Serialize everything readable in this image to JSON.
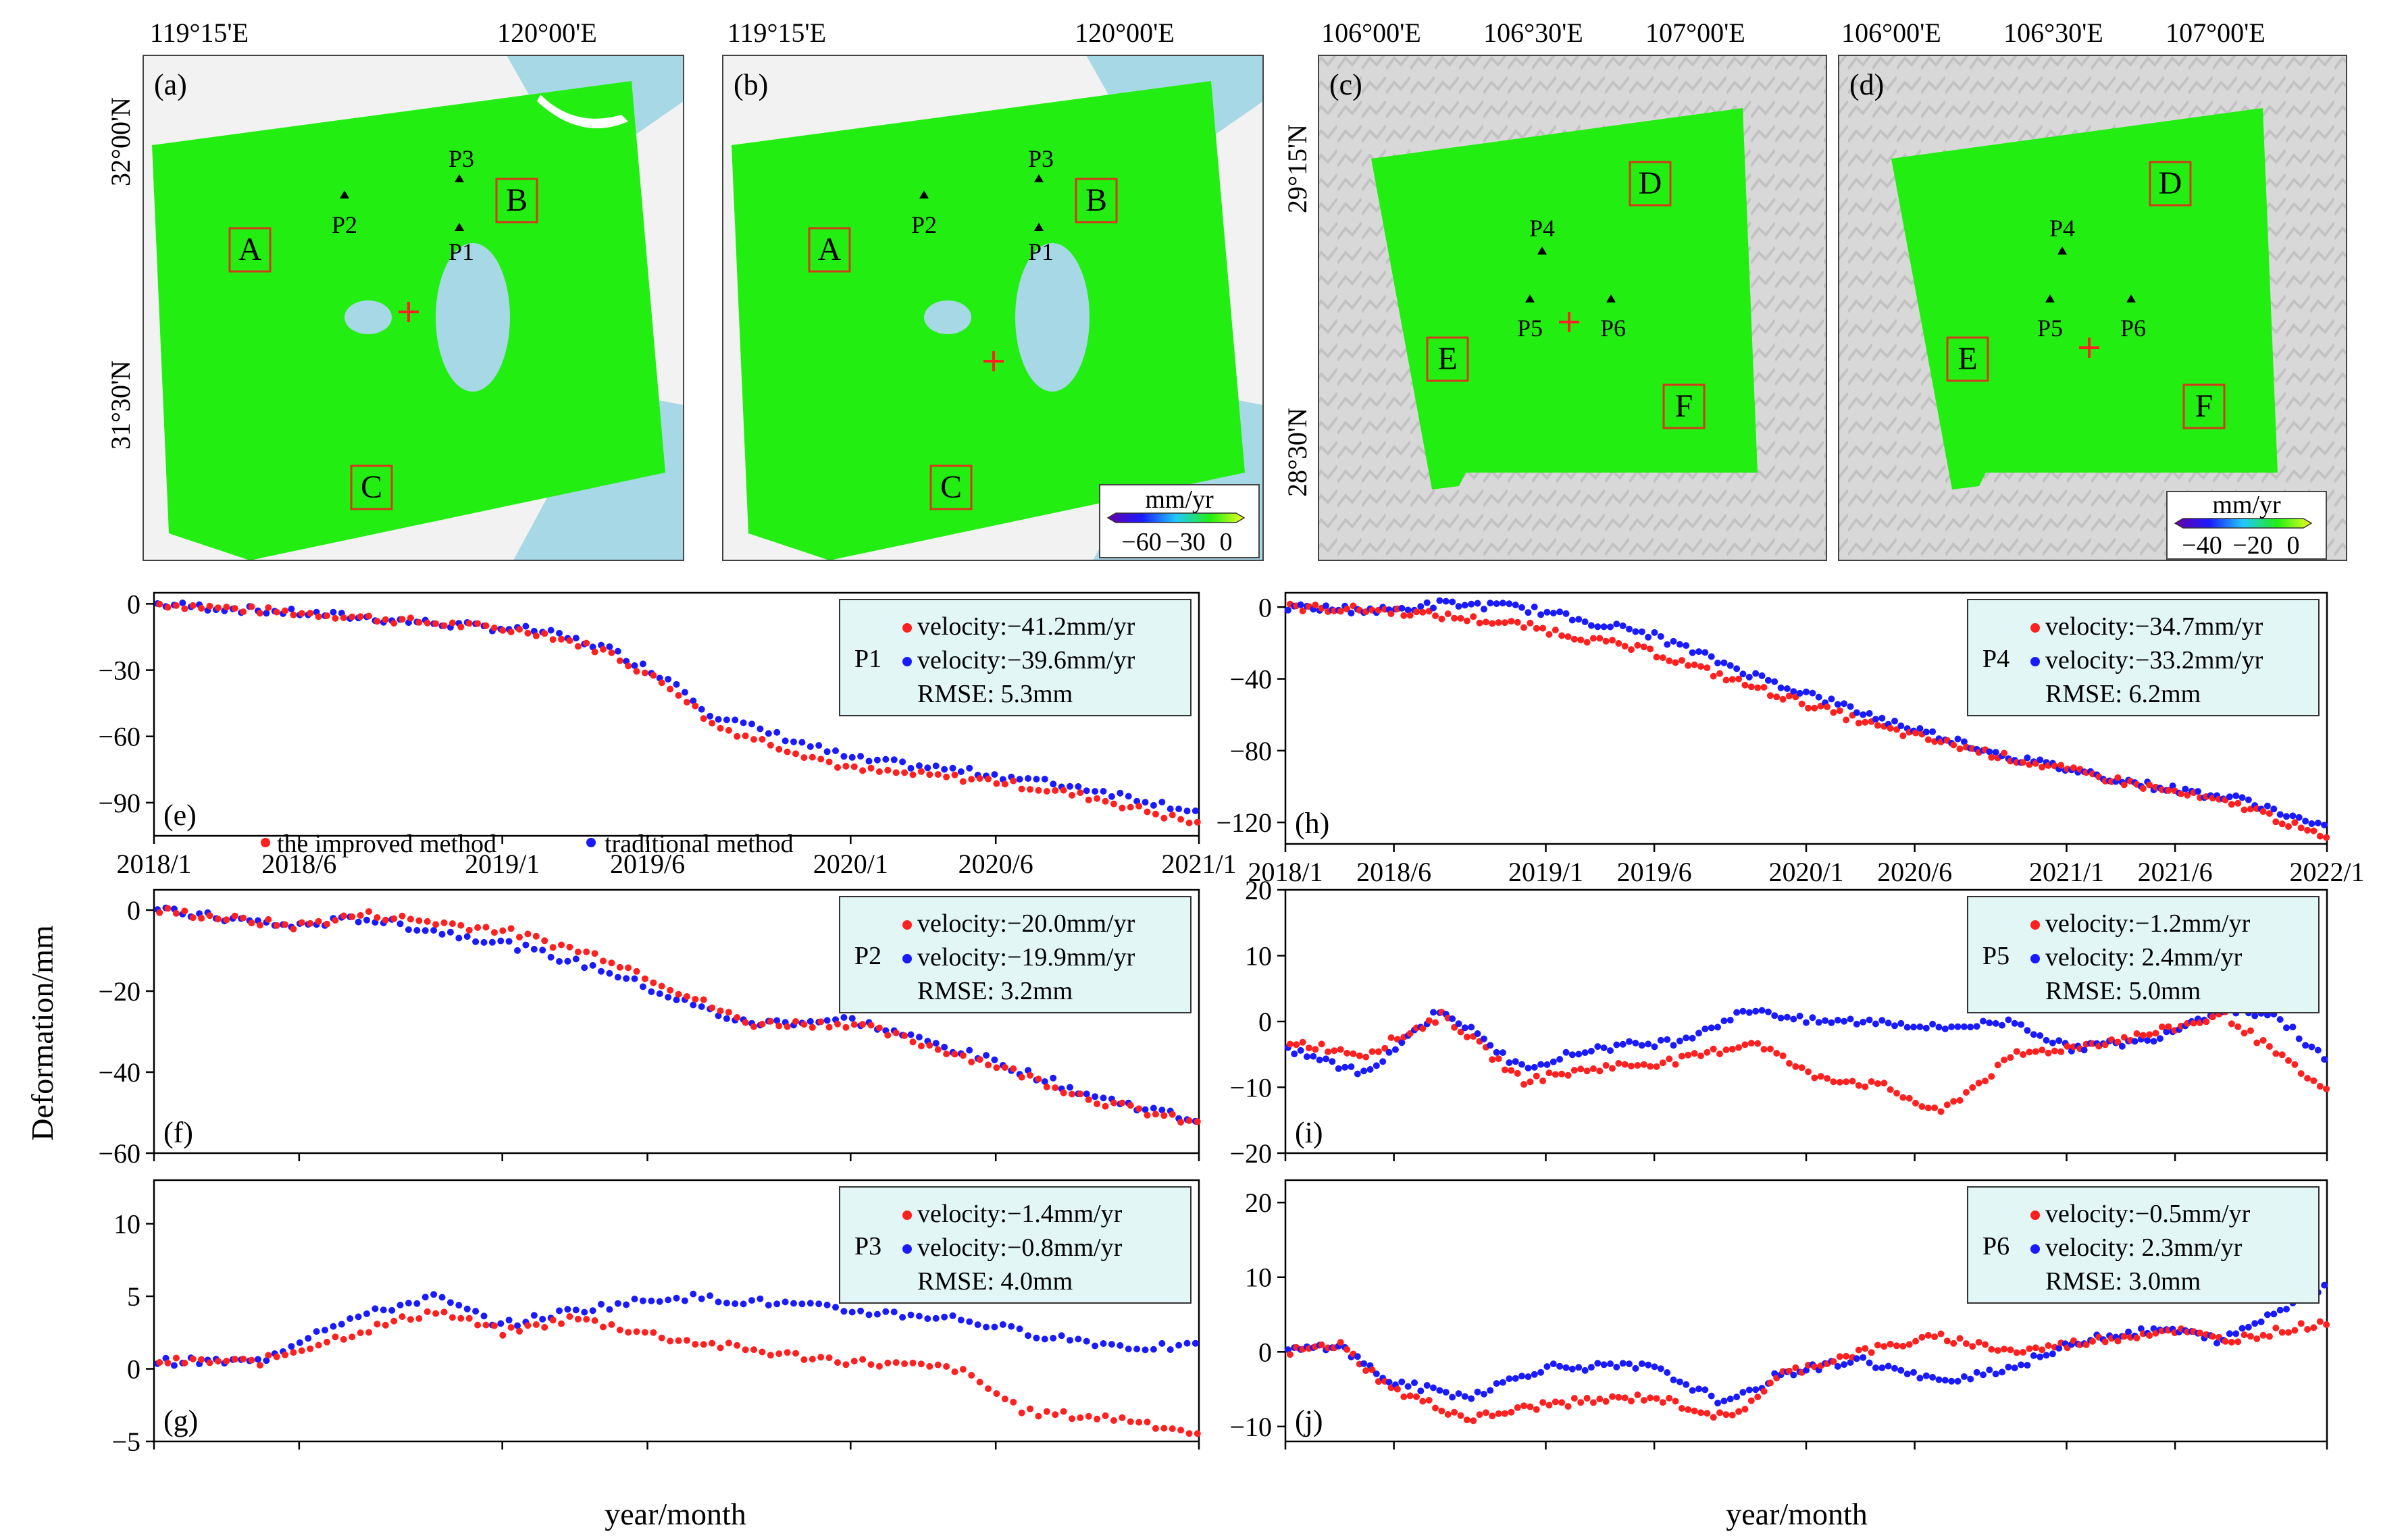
{
  "maps": [
    {
      "label": "(a)",
      "lon_ticks": [
        "119°15'E",
        "120°00'E"
      ],
      "lat_ticks": [
        "32°00'N",
        "31°30'N"
      ],
      "points": [
        "P1",
        "P2",
        "P3"
      ],
      "boxes": [
        "A",
        "B",
        "C"
      ],
      "colorbar": null
    },
    {
      "label": "(b)",
      "lon_ticks": [
        "119°15'E",
        "120°00'E"
      ],
      "lat_ticks": [],
      "points": [
        "P1",
        "P2",
        "P3"
      ],
      "boxes": [
        "A",
        "B",
        "C"
      ],
      "colorbar": {
        "unit": "mm/yr",
        "ticks": [
          "−60",
          "−30",
          "0"
        ]
      }
    },
    {
      "label": "(c)",
      "lon_ticks": [
        "106°00'E",
        "106°30'E",
        "107°00'E"
      ],
      "lat_ticks": [
        "29°15'N",
        "28°30'N"
      ],
      "points": [
        "P4",
        "P5",
        "P6"
      ],
      "boxes": [
        "D",
        "E",
        "F"
      ],
      "colorbar": null
    },
    {
      "label": "(d)",
      "lon_ticks": [
        "106°00'E",
        "106°30'E",
        "107°00'E"
      ],
      "lat_ticks": [],
      "points": [
        "P4",
        "P5",
        "P6"
      ],
      "boxes": [
        "D",
        "E",
        "F"
      ],
      "colorbar": {
        "unit": "mm/yr",
        "ticks": [
          "−40",
          "−20",
          "0"
        ]
      }
    }
  ],
  "colors": {
    "improved": "#ff2020",
    "traditional": "#1a1aff",
    "raster": "#22ee11",
    "water": "#a6d8e6",
    "box_bg": "#e3f6f6",
    "cross": "#ff2020",
    "box": "#d23a1a"
  },
  "axis_labels": {
    "y": "Deformation/mm",
    "x": "year/month"
  },
  "legend": {
    "improved": "the improved method",
    "traditional": "traditional method"
  },
  "chart_data": [
    {
      "type": "scatter",
      "panel": "(e)",
      "point": "P1",
      "ylim": [
        -105,
        5
      ],
      "yticks": [
        "0",
        "−30",
        "−60",
        "−90"
      ],
      "xlim": [
        2018.0,
        2021.0
      ],
      "xticks": [
        "2018/1",
        "2018/6",
        "2019/1",
        "2019/6",
        "2020/1",
        "2020/6",
        "2021/1"
      ],
      "velocity_improved": "velocity:−41.2mm/yr",
      "velocity_traditional": "velocity:−39.6mm/yr",
      "rmse": "RMSE: 5.3mm",
      "anchors_improved": [
        [
          2018.0,
          0
        ],
        [
          2018.5,
          -5
        ],
        [
          2018.9,
          -10
        ],
        [
          2019.1,
          -13
        ],
        [
          2019.3,
          -22
        ],
        [
          2019.5,
          -40
        ],
        [
          2019.6,
          -55
        ],
        [
          2019.8,
          -65
        ],
        [
          2020.0,
          -75
        ],
        [
          2020.4,
          -80
        ],
        [
          2020.7,
          -88
        ],
        [
          2021.0,
          -100
        ]
      ],
      "anchors_traditional": [
        [
          2018.0,
          0
        ],
        [
          2018.5,
          -5
        ],
        [
          2018.9,
          -10
        ],
        [
          2019.1,
          -12
        ],
        [
          2019.3,
          -20
        ],
        [
          2019.5,
          -36
        ],
        [
          2019.6,
          -50
        ],
        [
          2019.8,
          -60
        ],
        [
          2020.0,
          -70
        ],
        [
          2020.4,
          -77
        ],
        [
          2020.7,
          -84
        ],
        [
          2021.0,
          -94
        ]
      ]
    },
    {
      "type": "scatter",
      "panel": "(f)",
      "point": "P2",
      "ylim": [
        -60,
        5
      ],
      "yticks": [
        "0",
        "−20",
        "−40",
        "−60"
      ],
      "xlim": [
        2018.0,
        2021.0
      ],
      "xticks": [],
      "velocity_improved": "velocity:−20.0mm/yr",
      "velocity_traditional": "velocity:−19.9mm/yr",
      "rmse": "RMSE: 3.2mm",
      "anchors_improved": [
        [
          2018.0,
          0
        ],
        [
          2018.4,
          -4
        ],
        [
          2018.6,
          -1
        ],
        [
          2019.0,
          -5
        ],
        [
          2019.3,
          -12
        ],
        [
          2019.5,
          -20
        ],
        [
          2019.7,
          -28
        ],
        [
          2020.0,
          -28
        ],
        [
          2020.4,
          -38
        ],
        [
          2020.7,
          -47
        ],
        [
          2021.0,
          -53
        ]
      ],
      "anchors_traditional": [
        [
          2018.0,
          0
        ],
        [
          2018.4,
          -4
        ],
        [
          2018.6,
          -2
        ],
        [
          2019.0,
          -8
        ],
        [
          2019.3,
          -15
        ],
        [
          2019.5,
          -22
        ],
        [
          2019.7,
          -28
        ],
        [
          2020.0,
          -27
        ],
        [
          2020.4,
          -37
        ],
        [
          2020.7,
          -46
        ],
        [
          2021.0,
          -52
        ]
      ]
    },
    {
      "type": "scatter",
      "panel": "(g)",
      "point": "P3",
      "ylim": [
        -5,
        13
      ],
      "yticks": [
        "10",
        "5",
        "0",
        "−5"
      ],
      "xlim": [
        2018.0,
        2021.0
      ],
      "xticks": [],
      "velocity_improved": "velocity:−1.4mm/yr",
      "velocity_traditional": "velocity:−0.8mm/yr",
      "rmse": "RMSE: 4.0mm",
      "anchors_improved": [
        [
          2018.0,
          0.5
        ],
        [
          2018.3,
          0.5
        ],
        [
          2018.5,
          2
        ],
        [
          2018.8,
          4
        ],
        [
          2019.0,
          2.5
        ],
        [
          2019.2,
          3.5
        ],
        [
          2019.5,
          2
        ],
        [
          2019.8,
          1
        ],
        [
          2020.0,
          0.5
        ],
        [
          2020.3,
          0
        ],
        [
          2020.5,
          -3
        ],
        [
          2020.8,
          -3.5
        ],
        [
          2021.0,
          -4.5
        ]
      ],
      "anchors_traditional": [
        [
          2018.0,
          0.5
        ],
        [
          2018.3,
          0.5
        ],
        [
          2018.5,
          3
        ],
        [
          2018.8,
          5
        ],
        [
          2019.0,
          3
        ],
        [
          2019.2,
          4
        ],
        [
          2019.5,
          5
        ],
        [
          2019.8,
          4.5
        ],
        [
          2020.0,
          4
        ],
        [
          2020.3,
          3.5
        ],
        [
          2020.5,
          2.5
        ],
        [
          2020.8,
          1.5
        ],
        [
          2021.0,
          1.5
        ]
      ]
    },
    {
      "type": "scatter",
      "panel": "(h)",
      "point": "P4",
      "ylim": [
        -132,
        8
      ],
      "yticks": [
        "0",
        "−40",
        "−80",
        "−120"
      ],
      "xlim": [
        2018.0,
        2022.0
      ],
      "xticks": [
        "2018/1",
        "2018/6",
        "2019/1",
        "2019/6",
        "2020/1",
        "2020/6",
        "2021/1",
        "2021/6",
        "2022/1"
      ],
      "velocity_improved": "velocity:−34.7mm/yr",
      "velocity_traditional": "velocity:−33.2mm/yr",
      "rmse": "RMSE: 6.2mm",
      "anchors_improved": [
        [
          2018.0,
          0
        ],
        [
          2018.4,
          -2
        ],
        [
          2018.6,
          -5
        ],
        [
          2018.9,
          -10
        ],
        [
          2019.4,
          -25
        ],
        [
          2019.8,
          -45
        ],
        [
          2020.3,
          -68
        ],
        [
          2020.8,
          -85
        ],
        [
          2021.3,
          -100
        ],
        [
          2021.7,
          -112
        ],
        [
          2022.0,
          -130
        ]
      ],
      "anchors_traditional": [
        [
          2018.0,
          0
        ],
        [
          2018.4,
          -2
        ],
        [
          2018.6,
          2
        ],
        [
          2018.9,
          0
        ],
        [
          2019.4,
          -15
        ],
        [
          2019.8,
          -38
        ],
        [
          2020.3,
          -63
        ],
        [
          2020.8,
          -84
        ],
        [
          2021.3,
          -99
        ],
        [
          2021.7,
          -108
        ],
        [
          2022.0,
          -124
        ]
      ]
    },
    {
      "type": "scatter",
      "panel": "(i)",
      "point": "P5",
      "ylim": [
        -20,
        20
      ],
      "yticks": [
        "20",
        "10",
        "0",
        "−10",
        "−20"
      ],
      "xlim": [
        2018.0,
        2022.0
      ],
      "xticks": [],
      "velocity_improved": "velocity:−1.2mm/yr",
      "velocity_traditional": "velocity: 2.4mm/yr",
      "rmse": "RMSE: 5.0mm",
      "anchors_improved": [
        [
          2018.0,
          -3
        ],
        [
          2018.3,
          -5
        ],
        [
          2018.6,
          1
        ],
        [
          2018.9,
          -9
        ],
        [
          2019.2,
          -7
        ],
        [
          2019.5,
          -6
        ],
        [
          2019.8,
          -3
        ],
        [
          2020.0,
          -8
        ],
        [
          2020.3,
          -10
        ],
        [
          2020.5,
          -14
        ],
        [
          2020.8,
          -5
        ],
        [
          2021.0,
          -4
        ],
        [
          2021.3,
          -2
        ],
        [
          2021.6,
          1
        ],
        [
          2021.8,
          -5
        ],
        [
          2022.0,
          -11
        ]
      ],
      "anchors_traditional": [
        [
          2018.0,
          -4
        ],
        [
          2018.3,
          -8
        ],
        [
          2018.6,
          2
        ],
        [
          2018.9,
          -7
        ],
        [
          2019.2,
          -4
        ],
        [
          2019.5,
          -3
        ],
        [
          2019.8,
          2
        ],
        [
          2020.0,
          0
        ],
        [
          2020.3,
          0
        ],
        [
          2020.5,
          -1
        ],
        [
          2020.8,
          0
        ],
        [
          2021.0,
          -4
        ],
        [
          2021.3,
          -3
        ],
        [
          2021.6,
          2
        ],
        [
          2021.8,
          1
        ],
        [
          2022.0,
          -6
        ]
      ]
    },
    {
      "type": "scatter",
      "panel": "(j)",
      "point": "P6",
      "ylim": [
        -12,
        23
      ],
      "yticks": [
        "20",
        "10",
        "0",
        "−10"
      ],
      "xlim": [
        2018.0,
        2022.0
      ],
      "xticks": [],
      "velocity_improved": "velocity:−0.5mm/yr",
      "velocity_traditional": "velocity: 2.3mm/yr",
      "rmse": "RMSE: 3.0mm",
      "anchors_improved": [
        [
          2018.0,
          0
        ],
        [
          2018.2,
          1
        ],
        [
          2018.4,
          -5
        ],
        [
          2018.7,
          -9
        ],
        [
          2019.0,
          -7
        ],
        [
          2019.4,
          -6
        ],
        [
          2019.7,
          -9
        ],
        [
          2019.9,
          -3
        ],
        [
          2020.2,
          0
        ],
        [
          2020.5,
          2
        ],
        [
          2020.8,
          0
        ],
        [
          2021.1,
          1.5
        ],
        [
          2021.4,
          3
        ],
        [
          2021.6,
          1.5
        ],
        [
          2022.0,
          4
        ]
      ],
      "anchors_traditional": [
        [
          2018.0,
          0
        ],
        [
          2018.2,
          1
        ],
        [
          2018.4,
          -4
        ],
        [
          2018.7,
          -6
        ],
        [
          2019.0,
          -2
        ],
        [
          2019.4,
          -2
        ],
        [
          2019.7,
          -7
        ],
        [
          2019.9,
          -3
        ],
        [
          2020.2,
          -1
        ],
        [
          2020.5,
          -4
        ],
        [
          2020.8,
          -2
        ],
        [
          2021.1,
          2
        ],
        [
          2021.4,
          3
        ],
        [
          2021.6,
          1.5
        ],
        [
          2022.0,
          9
        ]
      ]
    }
  ]
}
